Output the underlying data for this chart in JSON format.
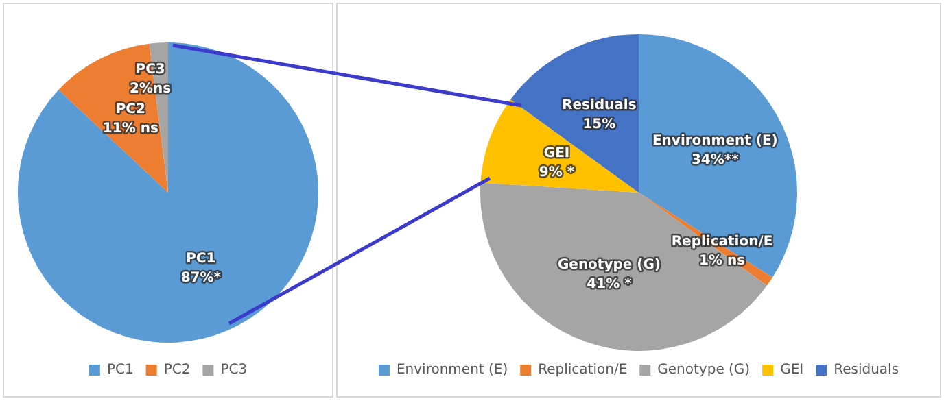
{
  "chart_data": [
    {
      "type": "pie",
      "categories": [
        "PC1",
        "PC2",
        "PC3"
      ],
      "values": [
        87,
        11,
        2
      ],
      "colors": [
        "#5b9bd5",
        "#ed7d31",
        "#a5a5a5"
      ],
      "value_labels": [
        "87%*",
        "11% ns",
        "2%ns"
      ],
      "legend": "bottom"
    },
    {
      "type": "pie",
      "categories": [
        "Environment (E)",
        "Replication/E",
        "Genotype (G)",
        "GEI",
        "Residuals"
      ],
      "values": [
        34,
        1,
        41,
        9,
        15
      ],
      "colors": [
        "#5b9bd5",
        "#ed7d31",
        "#a5a5a5",
        "#ffc000",
        "#4472c4"
      ],
      "value_labels": [
        "34%**",
        "1% ns",
        "41% *",
        "9% *",
        "15%"
      ],
      "legend": "bottom"
    }
  ]
}
